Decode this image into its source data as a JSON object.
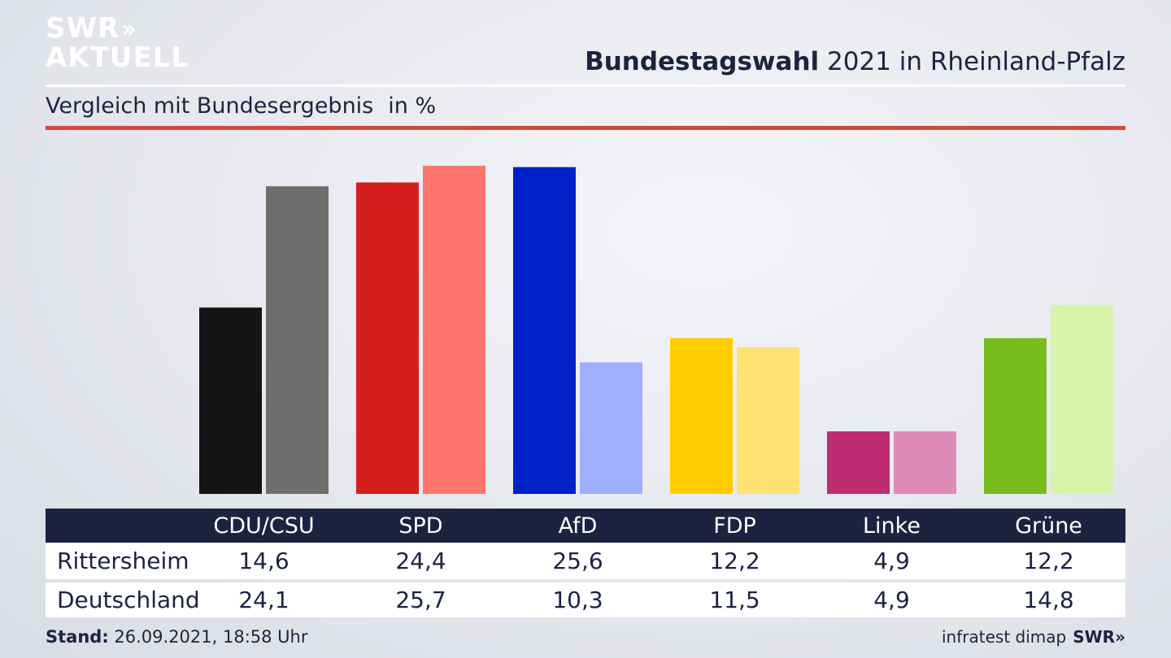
{
  "logo": {
    "line1": "SWR",
    "arrows": "››",
    "line2": "AKTUELL"
  },
  "title": {
    "bold": "Bundestagswahl",
    "rest": " 2021 in Rheinland-Pfalz"
  },
  "subtitle": {
    "text": "Vergleich mit Bundesergebnis",
    "unit": "in %"
  },
  "chart_data": {
    "type": "bar",
    "categories": [
      "CDU/CSU",
      "SPD",
      "AfD",
      "FDP",
      "Linke",
      "Grüne"
    ],
    "series": [
      {
        "name": "Rittersheim",
        "values": [
          14.6,
          24.4,
          25.6,
          12.2,
          4.9,
          12.2
        ],
        "colors": [
          "#141414",
          "#d41e1e",
          "#0020c8",
          "#ffcc00",
          "#be2d72",
          "#78bc1e"
        ]
      },
      {
        "name": "Deutschland",
        "values": [
          24.1,
          25.7,
          10.3,
          11.5,
          4.9,
          14.8
        ],
        "colors": [
          "#6f6e6c",
          "#ff746c",
          "#9faefe",
          "#fde173",
          "#df8bb7",
          "#d6f5aa"
        ]
      }
    ],
    "ylim": [
      0,
      28
    ],
    "grid": false,
    "legend": "table below chart"
  },
  "table": {
    "headers": [
      "CDU/CSU",
      "SPD",
      "AfD",
      "FDP",
      "Linke",
      "Grüne"
    ],
    "rows": [
      {
        "label": "Rittersheim",
        "values": [
          "14,6",
          "24,4",
          "25,6",
          "12,2",
          "4,9",
          "12,2"
        ]
      },
      {
        "label": "Deutschland",
        "values": [
          "24,1",
          "25,7",
          "10,3",
          "11,5",
          "4,9",
          "14,8"
        ]
      }
    ]
  },
  "footer": {
    "stand_label": "Stand:",
    "stand_value": " 26.09.2021, 18:58 Uhr",
    "source": "infratest dimap",
    "brand": "SWR»"
  },
  "colors": {
    "accent_red": "#d04a3c",
    "navy": "#1b2340"
  }
}
